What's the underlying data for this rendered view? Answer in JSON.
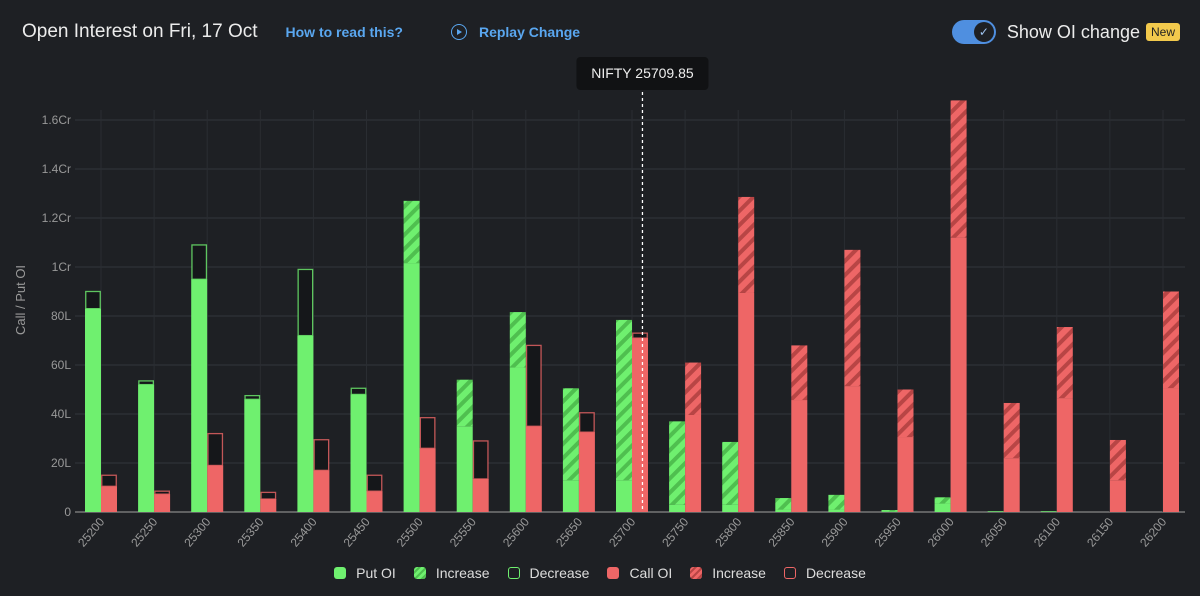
{
  "header": {
    "title": "Open Interest on Fri, 17 Oct",
    "how_to_read": "How to read this?",
    "replay": "Replay Change",
    "show_oi_change": "Show OI change",
    "new_badge": "New",
    "toggle_on": true
  },
  "colors": {
    "put": "#6ff06f",
    "put_hatch": "#55c855",
    "call": "#ee6666",
    "call_hatch": "#c24b4b",
    "grid": "#33363c"
  },
  "chart_data": {
    "type": "bar",
    "ylabel": "Call / Put OI",
    "ylim": [
      0,
      160
    ],
    "units": "lakhs",
    "yticks": [
      {
        "v": 0,
        "label": "0"
      },
      {
        "v": 20,
        "label": "20L"
      },
      {
        "v": 40,
        "label": "40L"
      },
      {
        "v": 60,
        "label": "60L"
      },
      {
        "v": 80,
        "label": "80L"
      },
      {
        "v": 100,
        "label": "1Cr"
      },
      {
        "v": 120,
        "label": "1.2Cr"
      },
      {
        "v": 140,
        "label": "1.4Cr"
      },
      {
        "v": 160,
        "label": "1.6Cr"
      }
    ],
    "spot": {
      "label": "NIFTY 25709.85",
      "value": 25709.85
    },
    "categories": [
      "25200",
      "25250",
      "25300",
      "25350",
      "25400",
      "25450",
      "25500",
      "25550",
      "25600",
      "25650",
      "25700",
      "25750",
      "25800",
      "25850",
      "25900",
      "25950",
      "26000",
      "26050",
      "26100",
      "26150",
      "26200"
    ],
    "series": [
      {
        "name": "Put OI",
        "oi": [
          83,
          52,
          95,
          46,
          72,
          48,
          127,
          54,
          81.6,
          50.5,
          78.4,
          37,
          28.6,
          5.7,
          7,
          0.8,
          6,
          0.3,
          0.3,
          0,
          0
        ],
        "change": [
          -7,
          -1.5,
          -14,
          -1.5,
          -27,
          -2.5,
          25.4,
          19,
          22.6,
          37.5,
          65.4,
          34,
          25.6,
          4.7,
          6,
          0.5,
          2.5,
          0,
          0,
          0,
          0
        ]
      },
      {
        "name": "Call OI",
        "oi": [
          10.5,
          7.3,
          19,
          5.3,
          17,
          8.5,
          26,
          13.5,
          35,
          32.6,
          71,
          61,
          128.6,
          68,
          107,
          50,
          168,
          44.5,
          75.5,
          29.4,
          90
        ],
        "change": [
          -4.5,
          -1.2,
          -13,
          -2.7,
          -12.5,
          -6.5,
          -12.5,
          -15.5,
          -33,
          -7.9,
          -2,
          21.4,
          39.2,
          22.3,
          55.6,
          19.4,
          56,
          22.5,
          29,
          16.4,
          39.4
        ]
      }
    ],
    "legend": [
      "Put OI",
      "Increase",
      "Decrease",
      "Call OI",
      "Increase",
      "Decrease"
    ],
    "legend_position": "bottom"
  }
}
